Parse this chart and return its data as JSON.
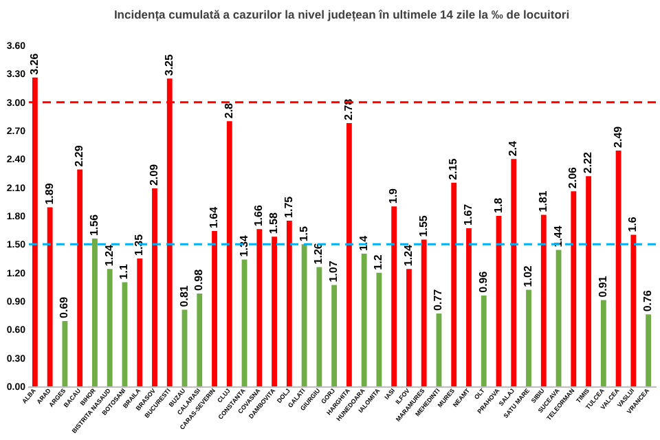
{
  "chart_data": {
    "type": "bar",
    "title": "Incidența cumulată a cazurilor la nivel județean în ultimele 14 zile la ‰ de locuitori",
    "categories": [
      "ALBA",
      "ARAD",
      "ARGES",
      "BACAU",
      "BIHOR",
      "BISTRITA NASAUD",
      "BOTOSANI",
      "BRAILA",
      "BRASOV",
      "BUCURESTI",
      "BUZAU",
      "CALARASI",
      "CARAS-SEVERIN",
      "CLUJ",
      "CONSTANTA",
      "COVASNA",
      "DAMBOVITA",
      "DOLJ",
      "GALATI",
      "GIURGIU",
      "GORJ",
      "HARGHITA",
      "HUNEDOARA",
      "IALOMITA",
      "IASI",
      "ILFOV",
      "MARAMURES",
      "MEHEDINTI",
      "MURES",
      "NEAMT",
      "OLT",
      "PRAHOVA",
      "SALAJ",
      "SATU MARE",
      "SIBIU",
      "SUCEAVA",
      "TELEORMAN",
      "TIMIS",
      "TULCEA",
      "VALCEA",
      "VASLUI",
      "VRANCEA"
    ],
    "values": [
      3.26,
      1.89,
      0.69,
      2.29,
      1.56,
      1.24,
      1.1,
      1.35,
      2.09,
      3.25,
      0.81,
      0.98,
      1.64,
      2.8,
      1.34,
      1.66,
      1.58,
      1.75,
      1.5,
      1.26,
      1.07,
      2.78,
      1.4,
      1.2,
      1.9,
      1.24,
      1.55,
      0.77,
      2.15,
      1.67,
      0.96,
      1.8,
      2.4,
      1.02,
      1.81,
      1.44,
      2.06,
      2.22,
      0.91,
      2.49,
      1.6,
      0.76
    ],
    "colors": [
      "#ff0000",
      "#ff0000",
      "#70ad47",
      "#ff0000",
      "#70ad47",
      "#70ad47",
      "#70ad47",
      "#ff0000",
      "#ff0000",
      "#ff0000",
      "#70ad47",
      "#70ad47",
      "#ff0000",
      "#ff0000",
      "#70ad47",
      "#ff0000",
      "#ff0000",
      "#ff0000",
      "#70ad47",
      "#70ad47",
      "#70ad47",
      "#ff0000",
      "#70ad47",
      "#70ad47",
      "#ff0000",
      "#ff0000",
      "#ff0000",
      "#70ad47",
      "#ff0000",
      "#ff0000",
      "#70ad47",
      "#ff0000",
      "#ff0000",
      "#70ad47",
      "#ff0000",
      "#70ad47",
      "#ff0000",
      "#ff0000",
      "#70ad47",
      "#ff0000",
      "#ff0000",
      "#70ad47"
    ],
    "ylim": [
      0,
      3.6
    ],
    "yticks": [
      {
        "value": 0,
        "label": "0.00"
      },
      {
        "value": 0.3,
        "label": "0.30"
      },
      {
        "value": 0.6,
        "label": "0.60"
      },
      {
        "value": 0.9,
        "label": "0.90"
      },
      {
        "value": 1.2,
        "label": "1.20"
      },
      {
        "value": 1.5,
        "label": "1.50"
      },
      {
        "value": 1.8,
        "label": "1.80"
      },
      {
        "value": 2.1,
        "label": "2.10"
      },
      {
        "value": 2.4,
        "label": "2.40"
      },
      {
        "value": 2.7,
        "label": "2.70"
      },
      {
        "value": 3.0,
        "label": "3.00"
      },
      {
        "value": 3.3,
        "label": "3.30"
      },
      {
        "value": 3.6,
        "label": "3.60"
      }
    ],
    "ref_lines": [
      {
        "axis": "y",
        "value": 3.0,
        "color": "#ff0000",
        "line_style": "dashed"
      },
      {
        "axis": "y",
        "value": 1.5,
        "color": "#00b0f0",
        "line_style": "dashed"
      }
    ],
    "data_labels": true,
    "grid": false
  }
}
